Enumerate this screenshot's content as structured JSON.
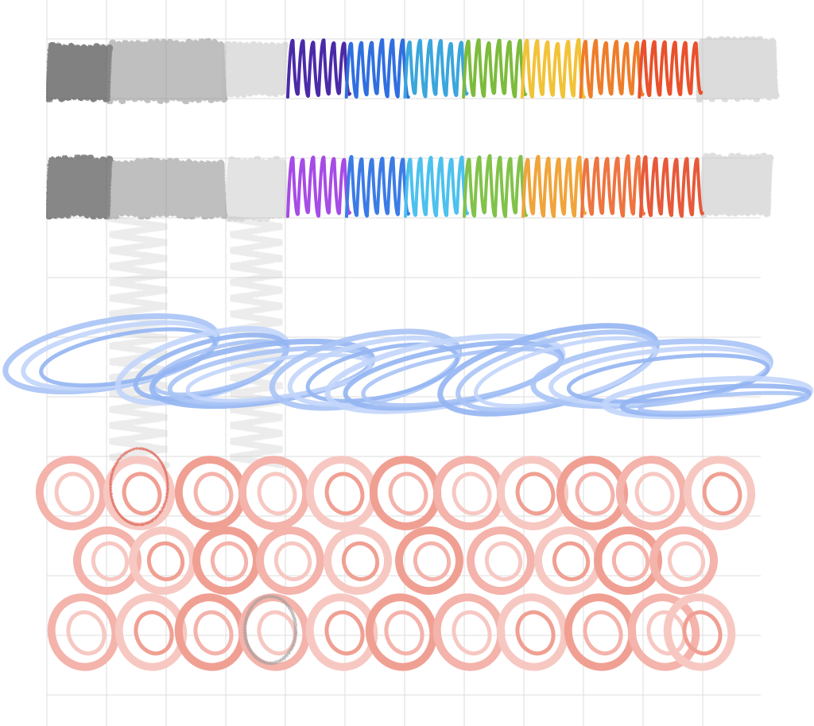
{
  "canvas": {
    "background": "#ffffff",
    "grid_color": "#dcdcdc",
    "grid": true
  },
  "palette": {
    "graphite_dark": "#555555",
    "graphite_mid": "#8a8a8a",
    "graphite_light": "#b9b9b9",
    "rainbow_row1": [
      "#4b2aa8",
      "#2f6fe0",
      "#3aa6dc",
      "#7dbb3c",
      "#f2c237",
      "#ee7d2a",
      "#e8512c"
    ],
    "rainbow_row2": [
      "#a64be6",
      "#3b7be6",
      "#4cc1ee",
      "#82c24a",
      "#f0a43a",
      "#ee7440",
      "#e65a3a"
    ],
    "blue_scribble": [
      "#a9c3f5",
      "#c2d5fb",
      "#94b5f2"
    ],
    "pink_circles": [
      "#f4b3ab",
      "#f7c8c2",
      "#f0a093"
    ],
    "accent_red": "#e0695b"
  }
}
